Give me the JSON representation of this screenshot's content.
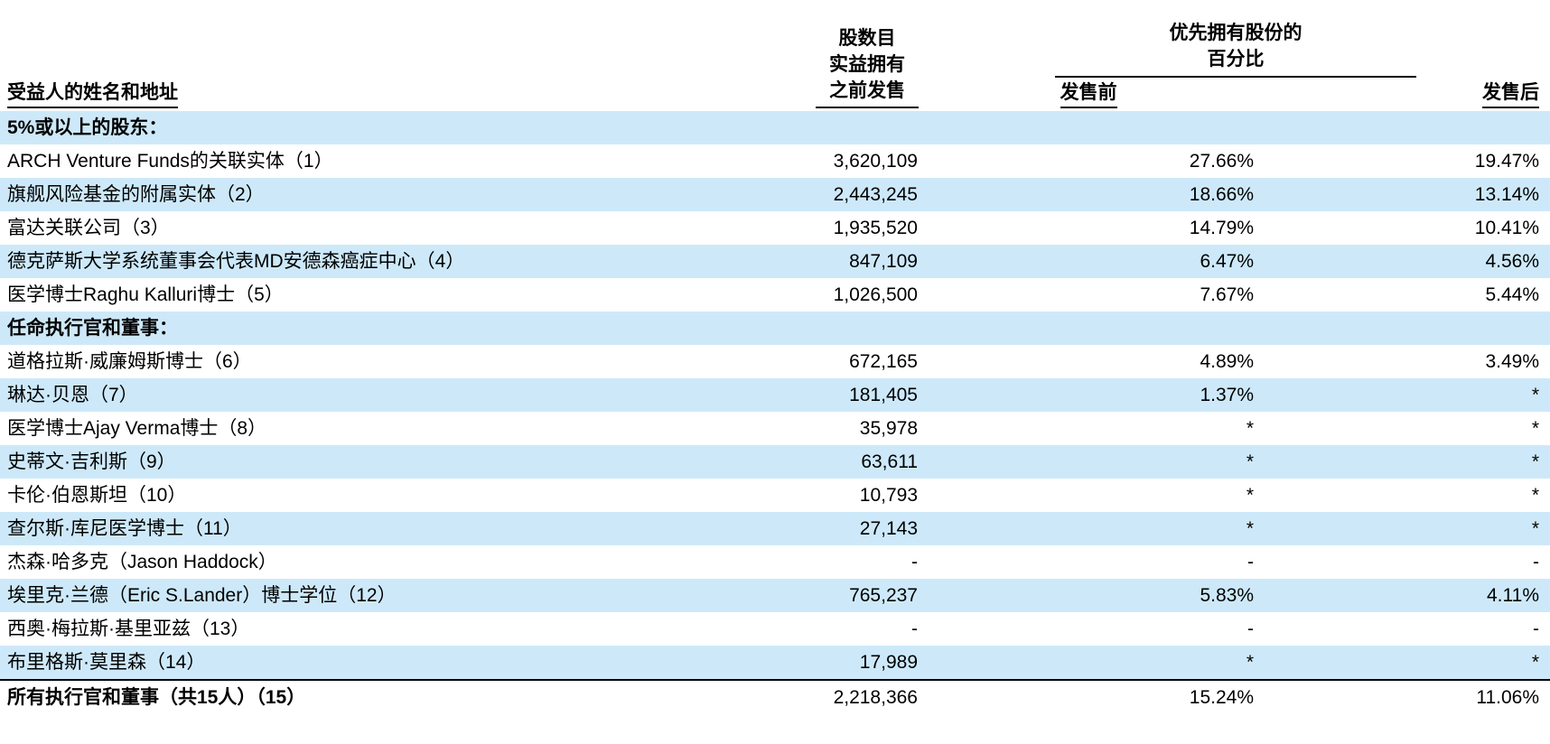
{
  "colors": {
    "stripe_blue": "#cde9f9",
    "text": "#000000",
    "background": "#ffffff"
  },
  "table": {
    "columns": {
      "beneficiary": "受益人的姓名和地址",
      "shares_line1": "股数目",
      "shares_line2": "实益拥有",
      "shares_line3": "之前发售",
      "pct_group_line1": "优先拥有股份的",
      "pct_group_line2": "百分比",
      "pre_offering": "发售前",
      "post_offering": "发售后"
    },
    "rows": [
      {
        "type": "section",
        "name": "5%或以上的股东："
      },
      {
        "type": "data",
        "name": "ARCH Venture Funds的关联实体（1）",
        "shares": "3,620,109",
        "pre": "27.66%",
        "post": "19.47%"
      },
      {
        "type": "data",
        "name": "旗舰风险基金的附属实体（2）",
        "shares": "2,443,245",
        "pre": "18.66%",
        "post": "13.14%"
      },
      {
        "type": "data",
        "name": "富达关联公司（3）",
        "shares": "1,935,520",
        "pre": "14.79%",
        "post": "10.41%"
      },
      {
        "type": "data",
        "name": "德克萨斯大学系统董事会代表MD安德森癌症中心（4）",
        "shares": "847,109",
        "pre": "6.47%",
        "post": "4.56%"
      },
      {
        "type": "data",
        "name": "医学博士Raghu Kalluri博士（5）",
        "shares": "1,026,500",
        "pre": "7.67%",
        "post": "5.44%"
      },
      {
        "type": "section",
        "name": "任命执行官和董事："
      },
      {
        "type": "data",
        "name": "道格拉斯·威廉姆斯博士（6）",
        "shares": "672,165",
        "pre": "4.89%",
        "post": "3.49%"
      },
      {
        "type": "data",
        "name": "琳达·贝恩（7）",
        "shares": "181,405",
        "pre": "1.37%",
        "post": "*"
      },
      {
        "type": "data",
        "name": "医学博士Ajay Verma博士（8）",
        "shares": "35,978",
        "pre": "*",
        "post": "*"
      },
      {
        "type": "data",
        "name": "史蒂文·吉利斯（9）",
        "shares": "63,611",
        "pre": "*",
        "post": "*"
      },
      {
        "type": "data",
        "name": "卡伦·伯恩斯坦（10）",
        "shares": "10,793",
        "pre": "*",
        "post": "*"
      },
      {
        "type": "data",
        "name": "查尔斯·库尼医学博士（11）",
        "shares": "27,143",
        "pre": "*",
        "post": "*"
      },
      {
        "type": "data",
        "name": "杰森·哈多克（Jason Haddock）",
        "shares": "-",
        "pre": "-",
        "post": "-"
      },
      {
        "type": "data",
        "name": "埃里克·兰德（Eric S.Lander）博士学位（12）",
        "shares": "765,237",
        "pre": "5.83%",
        "post": "4.11%"
      },
      {
        "type": "data",
        "name": "西奥·梅拉斯·基里亚兹（13）",
        "shares": "-",
        "pre": "-",
        "post": "-"
      },
      {
        "type": "data",
        "name": "布里格斯·莫里森（14）",
        "shares": "17,989",
        "pre": "*",
        "post": "*"
      },
      {
        "type": "total",
        "name": "所有执行官和董事（共15人）（15）",
        "shares": "2,218,366",
        "pre": "15.24%",
        "post": "11.06%"
      }
    ]
  }
}
